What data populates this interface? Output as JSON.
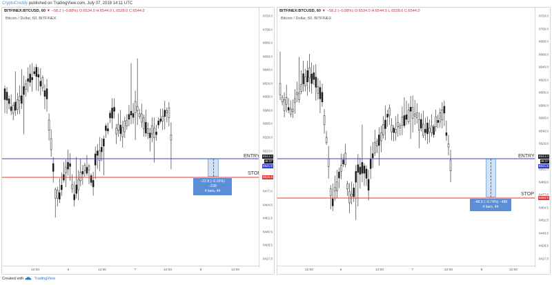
{
  "header": {
    "author": "CryptoCreddy",
    "published_text": "published on TradingView.com, July 07, 2018 14:11 UTC"
  },
  "footer": {
    "created_with": "Created with",
    "brand": "TradingView"
  },
  "colors": {
    "entry_line": "#2f3fcf",
    "stop_line": "#e53935",
    "entry_tag": "#2f3fcf",
    "stop_tag": "#e53935",
    "candle": "#1a1a1a",
    "position_box": "#78aae1"
  },
  "panels": [
    {
      "symbol": "BITFINEX:BTCUSD, 60",
      "change": "▼ −58.2 (−0.88%)",
      "ohlc": "O:6534.0 H:6544.0 L:6528.0 C:6544.0",
      "chart_name": "Bitcoin / Dollar, 60, BITFINEX",
      "price_ticks": [
        "6720.0",
        "6700.0",
        "6680.0",
        "6660.0",
        "6640.0",
        "6620.0",
        "6600.0",
        "6580.0",
        "6560.0",
        "6526.0",
        "6513.0",
        "6501.0",
        "6489.0",
        "6477.0",
        "6464.5",
        "6452.5",
        "6440.5",
        "6428.5",
        "6417.5"
      ],
      "entry_label": "ENTRY",
      "stop_label": "STOP",
      "tags": {
        "entry": "6544.0",
        "mid1": "48:37",
        "mid2": "6541.5",
        "stop": "6518.3"
      },
      "position_info_line1": "−22.8 (−0.35%) −228",
      "position_info_line2": "4 bars, 4h",
      "time_labels": [
        "12:00",
        "6",
        "12:00",
        "7",
        "12:00",
        "8",
        "12:00"
      ]
    },
    {
      "symbol": "BITFINEX:BTCUSD, 60",
      "change": "▼ −58.2 (−0.88%)",
      "ohlc": "O:6534.0 H:6544.0 L:6528.0 C:6544.0",
      "chart_name": "Bitcoin / Dollar, 60, BITFINEX",
      "price_ticks": [
        "6720.0",
        "6700.0",
        "6680.0",
        "6660.0",
        "6640.0",
        "6620.0",
        "6600.0",
        "6580.0",
        "6560.0",
        "6540.0",
        "6526.0",
        "6513.0",
        "6501.0",
        "6489.0",
        "6477.0",
        "6464.5",
        "6452.5",
        "6440.5",
        "6428.5",
        "6417.5"
      ],
      "entry_label": "ENTRY",
      "stop_label": "STOP",
      "tags": {
        "entry": "6544.0",
        "mid1": "48:37",
        "mid2": "6541.5",
        "stop": "6492.9"
      },
      "position_info_line1": "−48.5 (−0.74%) −485",
      "position_info_line2": "4 bars, 4h",
      "time_labels": [
        "12:00",
        "6",
        "12:00",
        "7",
        "12:00",
        "8",
        "12:00"
      ]
    }
  ]
}
